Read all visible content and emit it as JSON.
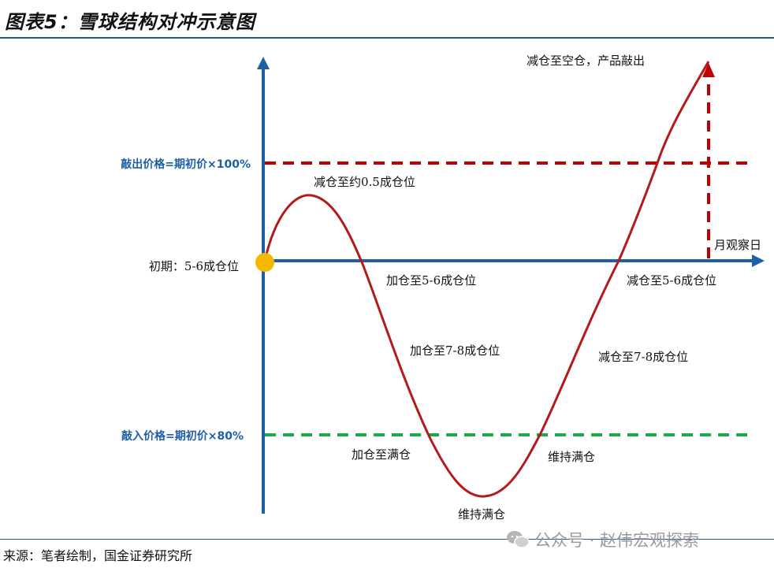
{
  "title": "图表5：雪球结构对冲示意图",
  "source": "来源：笔者绘制，国金证券研究所",
  "watermark": "公众号 · 赵伟宏观探索",
  "axis": {
    "knock_out_label": "敲出价格=期初价×100%",
    "knock_in_label": "敲入价格=期初价×80%",
    "start_label": "初期：5-6成仓位",
    "observation_label": "月观察日"
  },
  "annotations": {
    "reduce_to_half": "减仓至约0.5成仓位",
    "add_to_5_6": "加仓至5-6成仓位",
    "add_to_7_8": "加仓至7-8成仓位",
    "add_to_full": "加仓至满仓",
    "hold_full_bottom": "维持满仓",
    "hold_full_right": "维持满仓",
    "reduce_to_7_8": "减仓至7-8成仓位",
    "reduce_to_5_6": "减仓至5-6成仓位",
    "reduce_to_empty": "减仓至空仓，产品敲出"
  },
  "colors": {
    "axis": "#1f5fa6",
    "curve": "#b31b1b",
    "knock_out_line": "#c00000",
    "knock_in_line": "#1fa84a",
    "start_marker": "#f5b800"
  }
}
